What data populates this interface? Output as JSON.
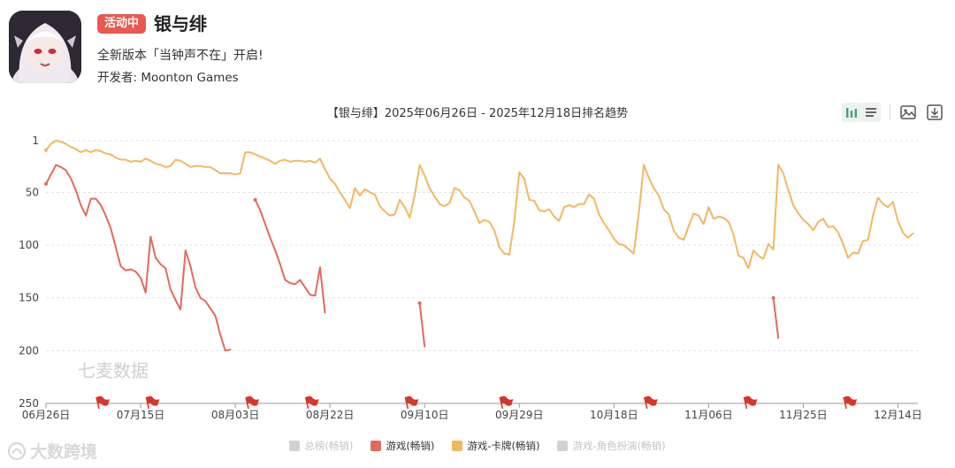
{
  "app": {
    "badge": "活动中",
    "name": "银与绯",
    "slogan": "全新版本「当钟声不在」开启!",
    "developer_label": "开发者:",
    "developer": "Moonton Games"
  },
  "watermark": "七麦数据",
  "footer_logo": "大数跨境",
  "colors": {
    "badge": "#e8594f",
    "series_free": "#d1d1d1",
    "series_game": "#e06b5c",
    "series_card": "#f0b861",
    "series_rpg": "#d1d1d1",
    "flag": "#d9362b",
    "grid": "#e3e3e3"
  },
  "toolbar": {
    "icons": [
      "bar-chart-icon",
      "list-icon",
      "image-icon",
      "download-icon"
    ]
  },
  "chart_data": {
    "type": "line",
    "title": "【银与绯】2025年06月26日 - 2025年12月18日排名趋势",
    "y_inverted": true,
    "ylim": [
      1,
      250
    ],
    "y_ticks": [
      1,
      50,
      100,
      150,
      200,
      250
    ],
    "xlim": [
      0,
      175
    ],
    "x_ticks": [
      {
        "label": "06月26日",
        "x": 0
      },
      {
        "label": "07月15日",
        "x": 19
      },
      {
        "label": "08月03日",
        "x": 38
      },
      {
        "label": "08月22日",
        "x": 57
      },
      {
        "label": "09月10日",
        "x": 76
      },
      {
        "label": "09月29日",
        "x": 95
      },
      {
        "label": "10月18日",
        "x": 114
      },
      {
        "label": "11月06日",
        "x": 133
      },
      {
        "label": "11月25日",
        "x": 152
      },
      {
        "label": "12月14日",
        "x": 171
      }
    ],
    "grid": true,
    "legend_position": "bottom",
    "event_flags": [
      11,
      21,
      41,
      53,
      73,
      92,
      121,
      141,
      161
    ],
    "series": [
      {
        "name": "总榜(畅销)",
        "active": false,
        "segments": []
      },
      {
        "name": "游戏(畅销)",
        "active": true,
        "segments": [
          [
            [
              0,
              42
            ],
            [
              1,
              33
            ],
            [
              2,
              24
            ],
            [
              3,
              26
            ],
            [
              4,
              29
            ],
            [
              5,
              37
            ],
            [
              6,
              48
            ],
            [
              7,
              62
            ],
            [
              8,
              72
            ],
            [
              9,
              56
            ],
            [
              10,
              56
            ],
            [
              11,
              62
            ],
            [
              12,
              72
            ],
            [
              13,
              84
            ],
            [
              14,
              102
            ],
            [
              15,
              120
            ],
            [
              16,
              124
            ],
            [
              17,
              123
            ],
            [
              18,
              125
            ],
            [
              19,
              131
            ],
            [
              20,
              145
            ],
            [
              21,
              92
            ],
            [
              22,
              112
            ],
            [
              23,
              118
            ],
            [
              24,
              122
            ],
            [
              25,
              142
            ],
            [
              26,
              152
            ],
            [
              27,
              161
            ],
            [
              28,
              105
            ],
            [
              29,
              120
            ],
            [
              30,
              140
            ],
            [
              31,
              150
            ],
            [
              32,
              153
            ],
            [
              33,
              160
            ],
            [
              34,
              167
            ],
            [
              35,
              185
            ],
            [
              36,
              200
            ],
            [
              37,
              199
            ]
          ],
          [
            [
              42,
              57
            ],
            [
              43,
              67
            ],
            [
              44,
              80
            ],
            [
              45,
              93
            ],
            [
              46,
              105
            ],
            [
              47,
              118
            ],
            [
              48,
              133
            ],
            [
              49,
              136
            ],
            [
              50,
              137
            ],
            [
              51,
              133
            ],
            [
              52,
              140
            ],
            [
              53,
              147
            ],
            [
              54,
              148
            ],
            [
              55,
              121
            ],
            [
              56,
              164
            ]
          ],
          [
            [
              75,
              155
            ],
            [
              76,
              196
            ]
          ],
          [
            [
              146,
              150
            ],
            [
              147,
              188
            ]
          ]
        ]
      },
      {
        "name": "游戏-卡牌(畅销)",
        "active": true,
        "segments": [
          [
            [
              0,
              10
            ],
            [
              1,
              4
            ],
            [
              2,
              1
            ],
            [
              3,
              2
            ],
            [
              4,
              4
            ],
            [
              5,
              7
            ],
            [
              6,
              9
            ],
            [
              7,
              12
            ],
            [
              8,
              10
            ],
            [
              9,
              12
            ],
            [
              10,
              10
            ],
            [
              11,
              11
            ],
            [
              12,
              13
            ],
            [
              13,
              14
            ],
            [
              14,
              17
            ],
            [
              15,
              19
            ],
            [
              16,
              19
            ],
            [
              17,
              21
            ],
            [
              18,
              20
            ],
            [
              19,
              21
            ],
            [
              20,
              18
            ],
            [
              21,
              20
            ],
            [
              22,
              23
            ],
            [
              23,
              24
            ],
            [
              24,
              26
            ],
            [
              25,
              25
            ],
            [
              26,
              19
            ],
            [
              27,
              20
            ],
            [
              28,
              23
            ],
            [
              29,
              26
            ],
            [
              30,
              25
            ],
            [
              31,
              25
            ],
            [
              32,
              26
            ],
            [
              33,
              26
            ],
            [
              34,
              29
            ],
            [
              35,
              32
            ],
            [
              36,
              32
            ],
            [
              37,
              32
            ],
            [
              38,
              33
            ],
            [
              39,
              32
            ],
            [
              40,
              12
            ],
            [
              41,
              12
            ],
            [
              42,
              14
            ],
            [
              43,
              16
            ],
            [
              44,
              18
            ],
            [
              45,
              20
            ],
            [
              46,
              23
            ],
            [
              47,
              20
            ],
            [
              48,
              19
            ],
            [
              49,
              21
            ],
            [
              50,
              20
            ],
            [
              51,
              20
            ],
            [
              52,
              21
            ],
            [
              53,
              20
            ],
            [
              54,
              22
            ],
            [
              55,
              18
            ],
            [
              56,
              28
            ],
            [
              57,
              37
            ],
            [
              58,
              42
            ],
            [
              59,
              50
            ],
            [
              60,
              57
            ],
            [
              61,
              65
            ],
            [
              62,
              46
            ],
            [
              63,
              53
            ],
            [
              64,
              47
            ],
            [
              65,
              50
            ],
            [
              66,
              52
            ],
            [
              67,
              63
            ],
            [
              68,
              68
            ],
            [
              69,
              72
            ],
            [
              70,
              71
            ],
            [
              71,
              57
            ],
            [
              72,
              64
            ],
            [
              73,
              74
            ],
            [
              74,
              53
            ],
            [
              75,
              24
            ],
            [
              76,
              34
            ],
            [
              77,
              46
            ],
            [
              78,
              54
            ],
            [
              79,
              61
            ],
            [
              80,
              63
            ],
            [
              81,
              60
            ],
            [
              82,
              46
            ],
            [
              83,
              48
            ],
            [
              84,
              55
            ],
            [
              85,
              58
            ],
            [
              86,
              68
            ],
            [
              87,
              79
            ],
            [
              88,
              76
            ],
            [
              89,
              78
            ],
            [
              90,
              86
            ],
            [
              91,
              102
            ],
            [
              92,
              108
            ],
            [
              93,
              109
            ],
            [
              94,
              78
            ],
            [
              95,
              31
            ],
            [
              96,
              37
            ],
            [
              97,
              57
            ],
            [
              98,
              58
            ],
            [
              99,
              67
            ],
            [
              100,
              68
            ],
            [
              101,
              66
            ],
            [
              102,
              73
            ],
            [
              103,
              77
            ],
            [
              104,
              64
            ],
            [
              105,
              62
            ],
            [
              106,
              64
            ],
            [
              107,
              61
            ],
            [
              108,
              61
            ],
            [
              109,
              52
            ],
            [
              110,
              56
            ],
            [
              111,
              71
            ],
            [
              112,
              79
            ],
            [
              113,
              86
            ],
            [
              114,
              94
            ],
            [
              115,
              99
            ],
            [
              116,
              100
            ],
            [
              117,
              104
            ],
            [
              118,
              108
            ],
            [
              119,
              69
            ],
            [
              120,
              24
            ],
            [
              121,
              36
            ],
            [
              122,
              46
            ],
            [
              123,
              53
            ],
            [
              124,
              66
            ],
            [
              125,
              71
            ],
            [
              126,
              86
            ],
            [
              127,
              93
            ],
            [
              128,
              95
            ],
            [
              129,
              82
            ],
            [
              130,
              70
            ],
            [
              131,
              72
            ],
            [
              132,
              80
            ],
            [
              133,
              64
            ],
            [
              134,
              75
            ],
            [
              135,
              73
            ],
            [
              136,
              74
            ],
            [
              137,
              78
            ],
            [
              138,
              90
            ],
            [
              139,
              110
            ],
            [
              140,
              112
            ],
            [
              141,
              122
            ],
            [
              142,
              105
            ],
            [
              143,
              110
            ],
            [
              144,
              113
            ],
            [
              145,
              99
            ],
            [
              146,
              104
            ],
            [
              147,
              24
            ],
            [
              148,
              32
            ],
            [
              149,
              48
            ],
            [
              150,
              62
            ],
            [
              151,
              70
            ],
            [
              152,
              76
            ],
            [
              153,
              80
            ],
            [
              154,
              86
            ],
            [
              155,
              78
            ],
            [
              156,
              75
            ],
            [
              157,
              83
            ],
            [
              158,
              82
            ],
            [
              159,
              88
            ],
            [
              160,
              99
            ],
            [
              161,
              112
            ],
            [
              162,
              107
            ],
            [
              163,
              108
            ],
            [
              164,
              96
            ],
            [
              165,
              95
            ],
            [
              166,
              72
            ],
            [
              167,
              55
            ],
            [
              168,
              61
            ],
            [
              169,
              64
            ],
            [
              170,
              59
            ],
            [
              171,
              77
            ],
            [
              172,
              88
            ],
            [
              173,
              93
            ],
            [
              174,
              89
            ]
          ]
        ]
      },
      {
        "name": "游戏-角色扮演(畅销)",
        "active": false,
        "segments": []
      }
    ]
  }
}
